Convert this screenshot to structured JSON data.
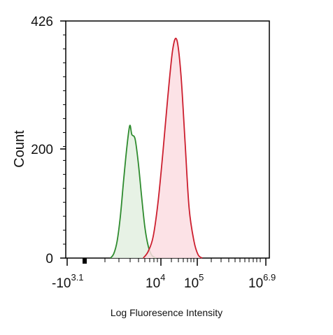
{
  "chart_data": {
    "type": "area",
    "xlabel": "Log Fluoresence Intensity",
    "ylabel": "Count",
    "x_scale": "log",
    "ylim": [
      0,
      426
    ],
    "y_ticks": [
      {
        "value": 0,
        "label": "0"
      },
      {
        "value": 200,
        "label": "200"
      },
      {
        "value": 426,
        "label": "426"
      }
    ],
    "x_ticks": [
      {
        "base": "-10",
        "exp": "3.1",
        "position": "-10^3.1"
      },
      {
        "base": "10",
        "exp": "4",
        "position": "10^4"
      },
      {
        "base": "10",
        "exp": "5",
        "position": "10^5"
      },
      {
        "base": "10",
        "exp": "6.9",
        "position": "10^6.9"
      }
    ],
    "series": [
      {
        "color": "#2e8b2e",
        "fill": "#e3f0e0",
        "points": [
          [
            0.0,
            0
          ],
          [
            0.04,
            8
          ],
          [
            0.08,
            30
          ],
          [
            0.12,
            75
          ],
          [
            0.16,
            140
          ],
          [
            0.2,
            200
          ],
          [
            0.235,
            238
          ],
          [
            0.26,
            222
          ],
          [
            0.3,
            214
          ],
          [
            0.34,
            170
          ],
          [
            0.38,
            110
          ],
          [
            0.42,
            55
          ],
          [
            0.46,
            22
          ],
          [
            0.5,
            6
          ],
          [
            0.55,
            0
          ]
        ]
      },
      {
        "color": "#cc1e2e",
        "fill": "#fbdde2",
        "points": [
          [
            0.4,
            0
          ],
          [
            0.46,
            12
          ],
          [
            0.52,
            38
          ],
          [
            0.58,
            100
          ],
          [
            0.64,
            190
          ],
          [
            0.7,
            290
          ],
          [
            0.76,
            375
          ],
          [
            0.81,
            392
          ],
          [
            0.86,
            330
          ],
          [
            0.91,
            210
          ],
          [
            0.96,
            90
          ],
          [
            1.02,
            30
          ],
          [
            1.07,
            6
          ],
          [
            1.12,
            0
          ]
        ]
      }
    ]
  }
}
